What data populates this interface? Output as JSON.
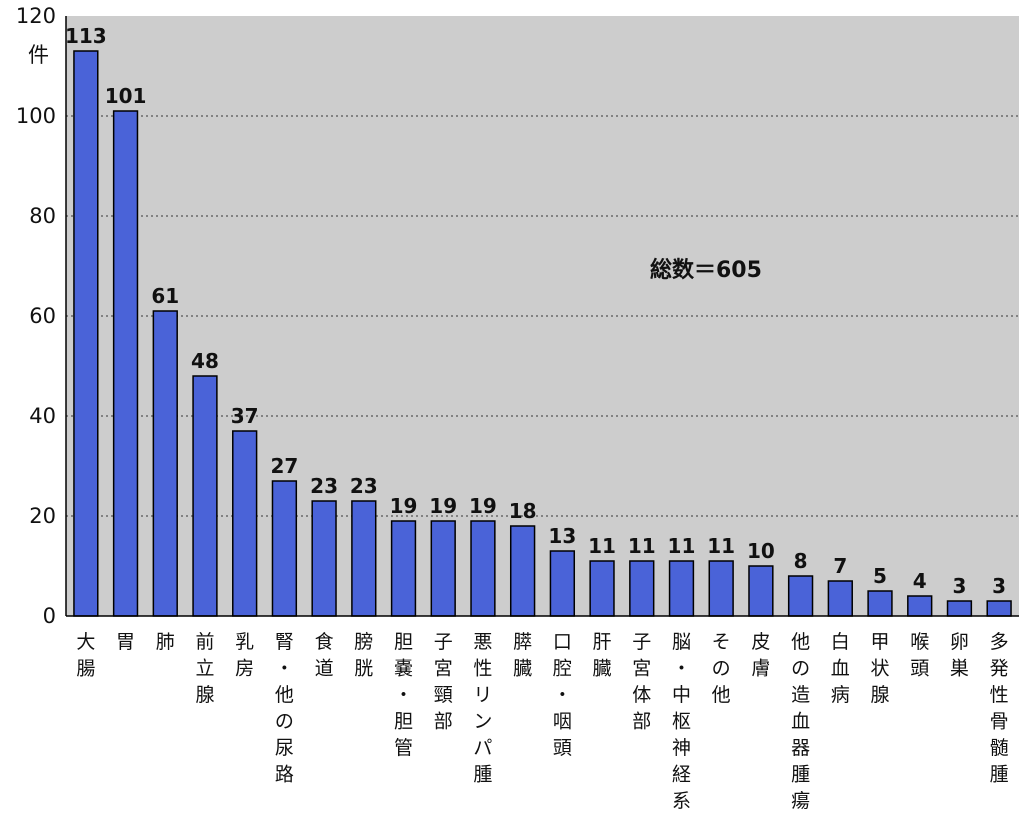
{
  "chart_data": {
    "type": "bar",
    "categories": [
      "大腸",
      "胃",
      "肺",
      "前立腺",
      "乳房",
      "腎・他の尿路",
      "食道",
      "膀胱",
      "胆嚢・胆管",
      "子宮頸部",
      "悪性リンパ腫",
      "膵臓",
      "口腔・咽頭",
      "肝臓",
      "子宮体部",
      "脳・中枢神経系",
      "その他",
      "皮膚",
      "他の造血器腫瘍",
      "白血病",
      "甲状腺",
      "喉頭",
      "卵巣",
      "多発性骨髄腫"
    ],
    "values": [
      113,
      101,
      61,
      48,
      37,
      27,
      23,
      23,
      19,
      19,
      19,
      18,
      13,
      11,
      11,
      11,
      11,
      10,
      8,
      7,
      5,
      4,
      3,
      3
    ],
    "ylim": [
      0,
      120
    ],
    "yticks": [
      0,
      20,
      40,
      60,
      80,
      100,
      120
    ],
    "y_unit": "件",
    "annotation": "総数＝605",
    "grid": "horizontal-dotted",
    "colors": {
      "bar": "#4a63d8",
      "bar_edge": "#000000",
      "plot_bg": "#cdcdcd",
      "grid": "#555555"
    }
  }
}
